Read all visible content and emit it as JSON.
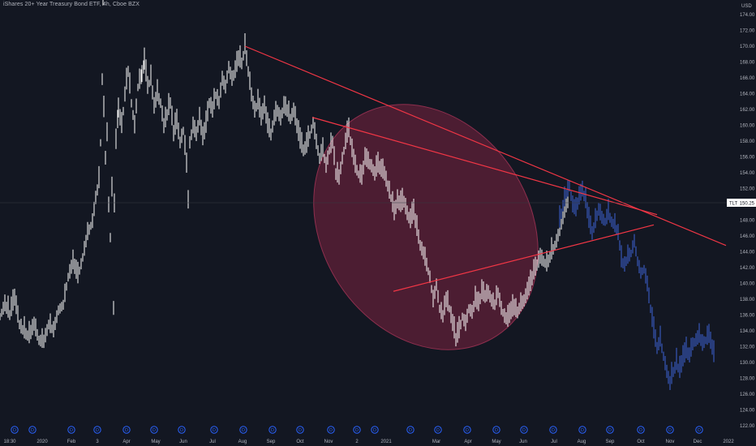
{
  "chart_data": {
    "type": "candlestick",
    "title": "iShares 20+ Year Treasury Bond ETF, 4h, Cboe BZX",
    "currency": "USD",
    "ylim": [
      121,
      175
    ],
    "y_ticks": [
      "174.00",
      "172.00",
      "170.00",
      "168.00",
      "166.00",
      "164.00",
      "162.00",
      "160.00",
      "158.00",
      "156.00",
      "154.00",
      "152.00",
      "150.00",
      "148.00",
      "146.00",
      "144.00",
      "142.00",
      "140.00",
      "138.00",
      "136.00",
      "134.00",
      "132.00",
      "130.00",
      "128.00",
      "126.00",
      "124.00",
      "122.00"
    ],
    "x_ticks": [
      "18:30",
      "2020",
      "Feb",
      "3",
      "Apr",
      "May",
      "Jun",
      "Jul",
      "Aug",
      "Sep",
      "Oct",
      "Nov",
      "2",
      "2021",
      "Mar",
      "Apr",
      "May",
      "Jun",
      "Jul",
      "Aug",
      "Sep",
      "Oct",
      "Nov",
      "Dec",
      "2022"
    ],
    "last_price": {
      "symbol": "TLT",
      "value": "150.25"
    },
    "series": [
      {
        "name": "price",
        "color": "#ffffff",
        "points": [
          [
            0,
            136.0
          ],
          [
            6,
            137.5
          ],
          [
            12,
            136.2
          ],
          [
            18,
            138.2
          ],
          [
            24,
            135.0
          ],
          [
            30,
            134.0
          ],
          [
            36,
            133.4
          ],
          [
            42,
            135.0
          ],
          [
            48,
            133.0
          ],
          [
            54,
            132.8
          ],
          [
            60,
            135.0
          ],
          [
            66,
            134.2
          ],
          [
            72,
            136.8
          ],
          [
            78,
            137.5
          ],
          [
            84,
            141.0
          ],
          [
            90,
            142.8
          ],
          [
            96,
            141.0
          ],
          [
            102,
            143.5
          ],
          [
            108,
            146.5
          ],
          [
            114,
            148.0
          ],
          [
            118,
            151.0
          ],
          [
            122,
            153.0
          ],
          [
            124,
            158.0
          ],
          [
            126,
            166.0
          ],
          [
            127,
            176.0
          ],
          [
            128,
            162.0
          ],
          [
            130,
            156.0
          ],
          [
            132,
            159.0
          ],
          [
            134,
            150.0
          ],
          [
            136,
            146.0
          ],
          [
            138,
            152.0
          ],
          [
            140,
            137.0
          ],
          [
            141,
            150.0
          ],
          [
            143,
            158.0
          ],
          [
            146,
            162.0
          ],
          [
            150,
            160.0
          ],
          [
            154,
            164.0
          ],
          [
            158,
            167.0
          ],
          [
            162,
            163.0
          ],
          [
            166,
            160.0
          ],
          [
            170,
            165.0
          ],
          [
            175,
            166.5
          ],
          [
            178,
            168.0
          ],
          [
            182,
            165.0
          ],
          [
            186,
            166.0
          ],
          [
            190,
            162.5
          ],
          [
            194,
            164.0
          ],
          [
            198,
            163.0
          ],
          [
            202,
            160.0
          ],
          [
            206,
            161.5
          ],
          [
            210,
            163.0
          ],
          [
            214,
            159.0
          ],
          [
            218,
            160.5
          ],
          [
            222,
            158.0
          ],
          [
            226,
            159.5
          ],
          [
            230,
            155.0
          ],
          [
            232,
            150.5
          ],
          [
            234,
            158.0
          ],
          [
            238,
            160.0
          ],
          [
            242,
            159.0
          ],
          [
            246,
            161.0
          ],
          [
            250,
            158.5
          ],
          [
            254,
            160.0
          ],
          [
            258,
            163.0
          ],
          [
            262,
            162.0
          ],
          [
            266,
            164.0
          ],
          [
            270,
            163.0
          ],
          [
            274,
            166.0
          ],
          [
            278,
            165.0
          ],
          [
            282,
            167.5
          ],
          [
            286,
            166.0
          ],
          [
            290,
            167.0
          ],
          [
            294,
            168.5
          ],
          [
            298,
            168.0
          ],
          [
            302,
            170.0
          ],
          [
            306,
            167.0
          ],
          [
            310,
            164.0
          ],
          [
            314,
            162.0
          ],
          [
            318,
            163.0
          ],
          [
            322,
            161.0
          ],
          [
            326,
            162.5
          ],
          [
            330,
            160.0
          ],
          [
            334,
            159.0
          ],
          [
            338,
            161.0
          ],
          [
            342,
            162.0
          ],
          [
            346,
            161.0
          ],
          [
            350,
            162.5
          ],
          [
            354,
            162.0
          ],
          [
            358,
            161.0
          ],
          [
            362,
            162.0
          ],
          [
            366,
            160.0
          ],
          [
            370,
            158.0
          ],
          [
            374,
            157.0
          ],
          [
            378,
            157.5
          ],
          [
            382,
            159.0
          ],
          [
            386,
            160.5
          ],
          [
            390,
            158.0
          ],
          [
            394,
            156.0
          ],
          [
            398,
            157.0
          ],
          [
            402,
            155.0
          ],
          [
            406,
            157.0
          ],
          [
            410,
            158.0
          ],
          [
            414,
            154.0
          ],
          [
            418,
            153.5
          ],
          [
            422,
            156.0
          ],
          [
            426,
            158.0
          ],
          [
            430,
            159.5
          ],
          [
            434,
            157.0
          ],
          [
            438,
            155.0
          ],
          [
            442,
            154.0
          ],
          [
            446,
            153.5
          ],
          [
            450,
            156.0
          ],
          [
            454,
            155.5
          ],
          [
            458,
            155.0
          ],
          [
            462,
            154.0
          ],
          [
            466,
            155.0
          ],
          [
            470,
            154.5
          ],
          [
            474,
            154.0
          ],
          [
            478,
            152.5
          ],
          [
            482,
            151.0
          ],
          [
            486,
            149.0
          ],
          [
            490,
            150.5
          ],
          [
            494,
            150.0
          ],
          [
            498,
            150.5
          ],
          [
            502,
            149.0
          ],
          [
            506,
            148.0
          ],
          [
            510,
            149.0
          ],
          [
            514,
            147.0
          ],
          [
            518,
            145.0
          ],
          [
            522,
            144.0
          ],
          [
            526,
            142.5
          ],
          [
            530,
            141.0
          ],
          [
            534,
            138.0
          ],
          [
            538,
            140.0
          ],
          [
            542,
            137.0
          ],
          [
            546,
            136.0
          ],
          [
            550,
            138.0
          ],
          [
            554,
            137.0
          ],
          [
            558,
            135.0
          ],
          [
            562,
            133.0
          ],
          [
            566,
            134.0
          ],
          [
            570,
            136.0
          ],
          [
            574,
            135.0
          ],
          [
            578,
            137.0
          ],
          [
            582,
            136.5
          ],
          [
            586,
            138.0
          ],
          [
            590,
            137.5
          ],
          [
            594,
            139.0
          ],
          [
            598,
            138.5
          ],
          [
            602,
            139.0
          ],
          [
            606,
            138.0
          ],
          [
            610,
            137.5
          ],
          [
            614,
            139.0
          ],
          [
            618,
            137.0
          ],
          [
            622,
            136.0
          ],
          [
            626,
            135.5
          ],
          [
            630,
            136.5
          ],
          [
            634,
            137.0
          ],
          [
            638,
            136.5
          ],
          [
            642,
            137.5
          ],
          [
            646,
            138.0
          ],
          [
            650,
            139.0
          ],
          [
            654,
            140.0
          ],
          [
            658,
            141.5
          ],
          [
            662,
            142.5
          ],
          [
            666,
            143.5
          ],
          [
            670,
            143.0
          ],
          [
            674,
            142.5
          ],
          [
            678,
            143.5
          ],
          [
            682,
            144.5
          ],
          [
            686,
            145.5
          ],
          [
            690,
            147.0
          ],
          [
            694,
            148.5
          ],
          [
            698,
            150.0
          ],
          [
            702,
            151.0
          ]
        ]
      },
      {
        "name": "projection",
        "color": "#3d63d6",
        "points": [
          [
            690,
            148.0
          ],
          [
            694,
            150.0
          ],
          [
            698,
            151.5
          ],
          [
            702,
            152.5
          ],
          [
            706,
            150.0
          ],
          [
            710,
            149.5
          ],
          [
            714,
            151.0
          ],
          [
            718,
            152.0
          ],
          [
            722,
            150.5
          ],
          [
            726,
            148.0
          ],
          [
            730,
            146.5
          ],
          [
            734,
            148.0
          ],
          [
            738,
            149.5
          ],
          [
            742,
            148.5
          ],
          [
            746,
            148.0
          ],
          [
            750,
            149.0
          ],
          [
            754,
            148.0
          ],
          [
            758,
            147.5
          ],
          [
            762,
            146.5
          ],
          [
            764,
            145.0
          ],
          [
            766,
            143.0
          ],
          [
            770,
            142.5
          ],
          [
            774,
            143.5
          ],
          [
            778,
            144.0
          ],
          [
            782,
            145.5
          ],
          [
            786,
            143.0
          ],
          [
            790,
            141.5
          ],
          [
            794,
            142.0
          ],
          [
            798,
            140.0
          ],
          [
            802,
            137.0
          ],
          [
            806,
            134.0
          ],
          [
            810,
            132.0
          ],
          [
            814,
            133.0
          ],
          [
            818,
            131.0
          ],
          [
            822,
            129.0
          ],
          [
            826,
            127.5
          ],
          [
            830,
            129.0
          ],
          [
            834,
            130.0
          ],
          [
            838,
            129.0
          ],
          [
            842,
            130.5
          ],
          [
            846,
            131.5
          ],
          [
            850,
            131.0
          ],
          [
            854,
            132.5
          ],
          [
            858,
            133.0
          ],
          [
            862,
            133.5
          ],
          [
            866,
            132.5
          ],
          [
            870,
            133.0
          ],
          [
            874,
            133.5
          ],
          [
            878,
            132.0
          ],
          [
            882,
            130.0
          ]
        ]
      }
    ],
    "trendlines": [
      {
        "color": "#f23645",
        "from": [
          302,
          170.0
        ],
        "to": [
          895,
          144.8
        ]
      },
      {
        "color": "#f23645",
        "from": [
          385,
          161.0
        ],
        "to": [
          810,
          148.7
        ]
      },
      {
        "color": "#f23645",
        "from": [
          485,
          139.0
        ],
        "to": [
          806,
          147.4
        ]
      }
    ],
    "highlight_ellipse": {
      "fill": "#7b2340",
      "stroke": "#8f2f4e"
    },
    "event_markers": {
      "label": "D",
      "x": [
        18,
        40,
        88,
        120,
        156,
        190,
        224,
        264,
        300,
        336,
        370,
        408,
        440,
        462,
        506,
        540,
        576,
        612,
        646,
        682,
        718,
        752,
        790,
        826,
        862
      ]
    }
  }
}
